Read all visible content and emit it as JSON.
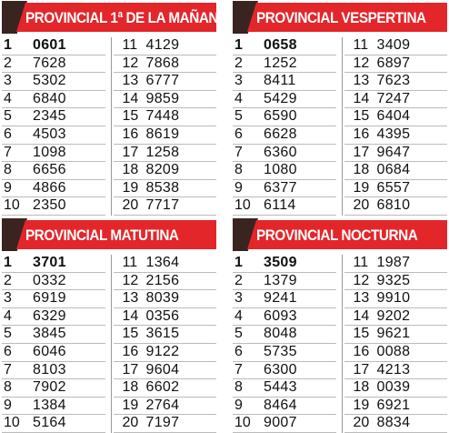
{
  "panels": [
    {
      "title": "PROVINCIAL 1ª DE LA MAÑANA",
      "left": [
        {
          "n": "1",
          "v": "0601"
        },
        {
          "n": "2",
          "v": "7628"
        },
        {
          "n": "3",
          "v": "5302"
        },
        {
          "n": "4",
          "v": "6840"
        },
        {
          "n": "5",
          "v": "2345"
        },
        {
          "n": "6",
          "v": "4503"
        },
        {
          "n": "7",
          "v": "1098"
        },
        {
          "n": "8",
          "v": "6656"
        },
        {
          "n": "9",
          "v": "4866"
        },
        {
          "n": "10",
          "v": "2350"
        }
      ],
      "right": [
        {
          "n": "11",
          "v": "4129"
        },
        {
          "n": "12",
          "v": "7868"
        },
        {
          "n": "13",
          "v": "6777"
        },
        {
          "n": "14",
          "v": "9859"
        },
        {
          "n": "15",
          "v": "7448"
        },
        {
          "n": "16",
          "v": "8619"
        },
        {
          "n": "17",
          "v": "1258"
        },
        {
          "n": "18",
          "v": "8209"
        },
        {
          "n": "19",
          "v": "8538"
        },
        {
          "n": "20",
          "v": "7717"
        }
      ]
    },
    {
      "title": "PROVINCIAL VESPERTINA",
      "left": [
        {
          "n": "1",
          "v": "0658"
        },
        {
          "n": "2",
          "v": "1252"
        },
        {
          "n": "3",
          "v": "8411"
        },
        {
          "n": "4",
          "v": "5429"
        },
        {
          "n": "5",
          "v": "6590"
        },
        {
          "n": "6",
          "v": "6628"
        },
        {
          "n": "7",
          "v": "6360"
        },
        {
          "n": "8",
          "v": "1080"
        },
        {
          "n": "9",
          "v": "6377"
        },
        {
          "n": "10",
          "v": "6114"
        }
      ],
      "right": [
        {
          "n": "11",
          "v": "3409"
        },
        {
          "n": "12",
          "v": "6897"
        },
        {
          "n": "13",
          "v": "7623"
        },
        {
          "n": "14",
          "v": "7247"
        },
        {
          "n": "15",
          "v": "6404"
        },
        {
          "n": "16",
          "v": "4395"
        },
        {
          "n": "17",
          "v": "9647"
        },
        {
          "n": "18",
          "v": "0684"
        },
        {
          "n": "19",
          "v": "6557"
        },
        {
          "n": "20",
          "v": "6810"
        }
      ]
    },
    {
      "title": "PROVINCIAL MATUTINA",
      "left": [
        {
          "n": "1",
          "v": "3701"
        },
        {
          "n": "2",
          "v": "0332"
        },
        {
          "n": "3",
          "v": "6919"
        },
        {
          "n": "4",
          "v": "6329"
        },
        {
          "n": "5",
          "v": "3845"
        },
        {
          "n": "6",
          "v": "6046"
        },
        {
          "n": "7",
          "v": "8103"
        },
        {
          "n": "8",
          "v": "7902"
        },
        {
          "n": "9",
          "v": "1384"
        },
        {
          "n": "10",
          "v": "5164"
        }
      ],
      "right": [
        {
          "n": "11",
          "v": "1364"
        },
        {
          "n": "12",
          "v": "2156"
        },
        {
          "n": "13",
          "v": "8039"
        },
        {
          "n": "14",
          "v": "0356"
        },
        {
          "n": "15",
          "v": "3615"
        },
        {
          "n": "16",
          "v": "9122"
        },
        {
          "n": "17",
          "v": "9604"
        },
        {
          "n": "18",
          "v": "6602"
        },
        {
          "n": "19",
          "v": "2764"
        },
        {
          "n": "20",
          "v": "7197"
        }
      ]
    },
    {
      "title": "PROVINCIAL NOCTURNA",
      "left": [
        {
          "n": "1",
          "v": "3509"
        },
        {
          "n": "2",
          "v": "1379"
        },
        {
          "n": "3",
          "v": "9241"
        },
        {
          "n": "4",
          "v": "6093"
        },
        {
          "n": "5",
          "v": "8048"
        },
        {
          "n": "6",
          "v": "5735"
        },
        {
          "n": "7",
          "v": "6300"
        },
        {
          "n": "8",
          "v": "5443"
        },
        {
          "n": "9",
          "v": "8464"
        },
        {
          "n": "10",
          "v": "9007"
        }
      ],
      "right": [
        {
          "n": "11",
          "v": "1987"
        },
        {
          "n": "12",
          "v": "9325"
        },
        {
          "n": "13",
          "v": "9910"
        },
        {
          "n": "14",
          "v": "9202"
        },
        {
          "n": "15",
          "v": "9621"
        },
        {
          "n": "16",
          "v": "0088"
        },
        {
          "n": "17",
          "v": "4213"
        },
        {
          "n": "18",
          "v": "0039"
        },
        {
          "n": "19",
          "v": "6921"
        },
        {
          "n": "20",
          "v": "8834"
        }
      ]
    }
  ],
  "colors": {
    "accent": "#e3262a",
    "tab": "#3a2420"
  }
}
